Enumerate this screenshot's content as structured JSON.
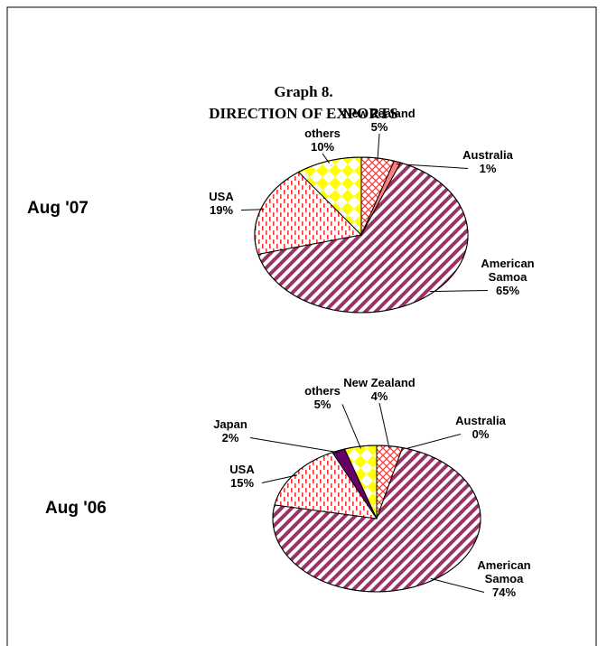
{
  "header": {
    "title": "Graph 8.",
    "subtitle": "DIRECTION OF EXPORTS"
  },
  "chart_data": [
    {
      "type": "pie",
      "label": "Aug '07",
      "categories": [
        "New Zealand",
        "Australia",
        "American Samoa",
        "USA",
        "others"
      ],
      "values": [
        5,
        1,
        65,
        19,
        10
      ],
      "value_labels": [
        "5%",
        "1%",
        "65%",
        "19%",
        "10%"
      ],
      "colors": [
        "#ff3333",
        "#ff8080",
        "#993366",
        "#ff3333",
        "#ffff00"
      ],
      "patterns": [
        "cross",
        "solid",
        "diagonal",
        "dash",
        "diamond"
      ]
    },
    {
      "type": "pie",
      "label": "Aug '06",
      "categories": [
        "New Zealand",
        "Australia",
        "American Samoa",
        "USA",
        "Japan",
        "others"
      ],
      "values": [
        4,
        0,
        74,
        15,
        2,
        5
      ],
      "value_labels": [
        "4%",
        "0%",
        "74%",
        "15%",
        "2%",
        "5%"
      ],
      "colors": [
        "#ff3333",
        "#ff8080",
        "#993366",
        "#ff3333",
        "#660066",
        "#ffff00"
      ],
      "patterns": [
        "cross",
        "solid",
        "diagonal",
        "dash",
        "solid",
        "diamond"
      ]
    }
  ]
}
